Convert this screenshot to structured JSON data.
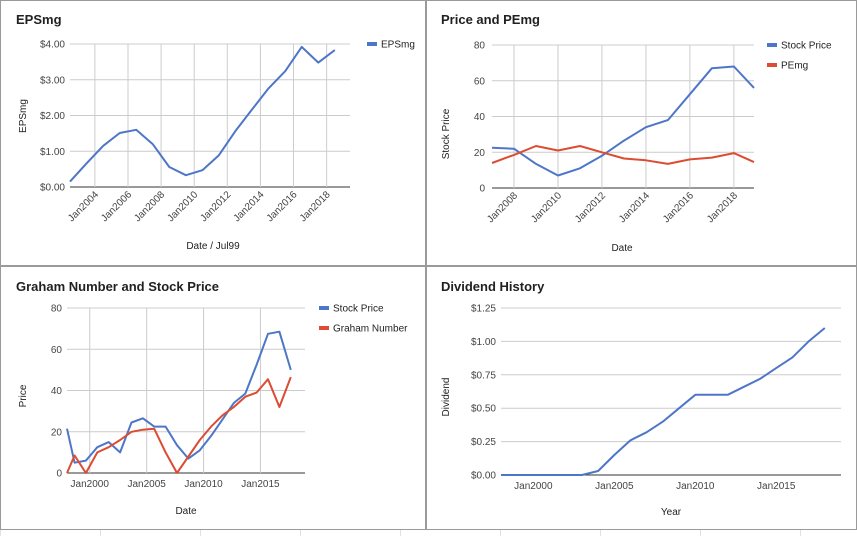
{
  "chart_data": [
    {
      "id": "c1",
      "type": "line",
      "title": "EPSmg",
      "xlabel": "Date / Jul99",
      "ylabel": "EPSmg",
      "x_type": "date",
      "xlim": [
        "2002-07-01",
        "2019-06-01"
      ],
      "ylim": [
        0,
        4
      ],
      "yticks": [
        0,
        1,
        2,
        3,
        4
      ],
      "ytick_labels": [
        "$0.00",
        "$1.00",
        "$2.00",
        "$3.00",
        "$4.00"
      ],
      "xticks": [
        "2004-01-01",
        "2006-01-01",
        "2008-01-01",
        "2010-01-01",
        "2012-01-01",
        "2014-01-01",
        "2016-01-01",
        "2018-01-01"
      ],
      "xtick_labels": [
        "Jan2004",
        "Jan2006",
        "Jan2008",
        "Jan2010",
        "Jan2012",
        "Jan2014",
        "Jan2016",
        "Jan2018"
      ],
      "xtick_rotate": true,
      "x_gridlines": true,
      "legend": "right",
      "series": [
        {
          "name": "EPSmg",
          "color": "#4e76c8",
          "points": [
            [
              "2002-07-01",
              0.15
            ],
            [
              "2003-07-01",
              0.66
            ],
            [
              "2004-07-01",
              1.15
            ],
            [
              "2005-07-01",
              1.51
            ],
            [
              "2006-07-01",
              1.6
            ],
            [
              "2007-07-01",
              1.2
            ],
            [
              "2008-07-01",
              0.56
            ],
            [
              "2009-07-01",
              0.33
            ],
            [
              "2010-07-01",
              0.47
            ],
            [
              "2011-07-01",
              0.89
            ],
            [
              "2012-07-01",
              1.57
            ],
            [
              "2013-07-01",
              2.17
            ],
            [
              "2014-07-01",
              2.76
            ],
            [
              "2015-07-01",
              3.24
            ],
            [
              "2016-07-01",
              3.92
            ],
            [
              "2017-07-01",
              3.48
            ],
            [
              "2018-07-01",
              3.83
            ]
          ]
        }
      ]
    },
    {
      "id": "c2",
      "type": "line",
      "title": "Price and PEmg",
      "xlabel": "Date",
      "ylabel": "Stock Price",
      "x_type": "date",
      "xlim": [
        "2007-01-01",
        "2018-12-01"
      ],
      "ylim": [
        0,
        80
      ],
      "yticks": [
        0,
        20,
        40,
        60,
        80
      ],
      "ytick_labels": [
        "0",
        "20",
        "40",
        "60",
        "80"
      ],
      "xticks": [
        "2008-01-01",
        "2010-01-01",
        "2012-01-01",
        "2014-01-01",
        "2016-01-01",
        "2018-01-01"
      ],
      "xtick_labels": [
        "Jan2008",
        "Jan2010",
        "Jan2012",
        "Jan2014",
        "Jan2016",
        "Jan2018"
      ],
      "xtick_rotate": true,
      "x_gridlines": true,
      "legend": "right",
      "series": [
        {
          "name": "Stock Price",
          "color": "#4e76c8",
          "points": [
            [
              "2007-01-01",
              22.5
            ],
            [
              "2008-01-01",
              22
            ],
            [
              "2009-01-01",
              13.5
            ],
            [
              "2010-01-01",
              7
            ],
            [
              "2011-01-01",
              11
            ],
            [
              "2012-01-01",
              18
            ],
            [
              "2013-01-01",
              26.5
            ],
            [
              "2014-01-01",
              34
            ],
            [
              "2015-01-01",
              38
            ],
            [
              "2016-01-01",
              52.5
            ],
            [
              "2017-01-01",
              67
            ],
            [
              "2018-01-01",
              68
            ],
            [
              "2018-12-01",
              56
            ]
          ]
        },
        {
          "name": "PEmg",
          "color": "#dc4c32",
          "points": [
            [
              "2007-01-01",
              14
            ],
            [
              "2008-01-01",
              18.5
            ],
            [
              "2009-01-01",
              23.5
            ],
            [
              "2010-01-01",
              21
            ],
            [
              "2011-01-01",
              23.5
            ],
            [
              "2012-01-01",
              20
            ],
            [
              "2013-01-01",
              16.5
            ],
            [
              "2014-01-01",
              15.5
            ],
            [
              "2015-01-01",
              13.5
            ],
            [
              "2016-01-01",
              16
            ],
            [
              "2017-01-01",
              17
            ],
            [
              "2018-01-01",
              19.5
            ],
            [
              "2018-12-01",
              14.5
            ]
          ]
        }
      ]
    },
    {
      "id": "c3",
      "type": "line",
      "title": "Graham Number and Stock Price",
      "xlabel": "Date",
      "ylabel": "Price",
      "x_type": "date",
      "xlim": [
        "1998-01-01",
        "2018-12-01"
      ],
      "ylim": [
        0,
        80
      ],
      "yticks": [
        0,
        20,
        40,
        60,
        80
      ],
      "ytick_labels": [
        "0",
        "20",
        "40",
        "60",
        "80"
      ],
      "xticks": [
        "2000-01-01",
        "2005-01-01",
        "2010-01-01",
        "2015-01-01"
      ],
      "xtick_labels": [
        "Jan2000",
        "Jan2005",
        "Jan2010",
        "Jan2015"
      ],
      "xtick_rotate": false,
      "x_gridlines": true,
      "legend": "right",
      "series": [
        {
          "name": "Stock Price",
          "color": "#4e76c8",
          "points": [
            [
              "1998-01-01",
              21.5
            ],
            [
              "1998-09-01",
              5
            ],
            [
              "1999-09-01",
              6
            ],
            [
              "2000-09-01",
              12.5
            ],
            [
              "2001-09-01",
              15
            ],
            [
              "2002-09-01",
              10
            ],
            [
              "2003-09-01",
              24.5
            ],
            [
              "2004-09-01",
              26.5
            ],
            [
              "2005-09-01",
              22.5
            ],
            [
              "2006-09-01",
              22.5
            ],
            [
              "2007-09-01",
              13.5
            ],
            [
              "2008-09-01",
              7
            ],
            [
              "2009-09-01",
              11
            ],
            [
              "2010-09-01",
              18
            ],
            [
              "2011-09-01",
              26
            ],
            [
              "2012-09-01",
              34
            ],
            [
              "2013-09-01",
              38.5
            ],
            [
              "2014-09-01",
              52.5
            ],
            [
              "2015-09-01",
              67.5
            ],
            [
              "2016-09-01",
              68.5
            ],
            [
              "2017-09-01",
              50
            ]
          ]
        },
        {
          "name": "Graham Number",
          "color": "#dc4c32",
          "points": [
            [
              "1998-01-01",
              0
            ],
            [
              "1998-09-01",
              8.5
            ],
            [
              "1999-09-01",
              0
            ],
            [
              "2000-09-01",
              10
            ],
            [
              "2001-09-01",
              12.5
            ],
            [
              "2002-09-01",
              16
            ],
            [
              "2003-09-01",
              20
            ],
            [
              "2004-09-01",
              21
            ],
            [
              "2005-09-01",
              21.5
            ],
            [
              "2006-09-01",
              10
            ],
            [
              "2007-09-01",
              0
            ],
            [
              "2008-09-01",
              8
            ],
            [
              "2009-09-01",
              16
            ],
            [
              "2010-09-01",
              22.5
            ],
            [
              "2011-09-01",
              28
            ],
            [
              "2012-09-01",
              32
            ],
            [
              "2013-09-01",
              37
            ],
            [
              "2014-09-01",
              39
            ],
            [
              "2015-09-01",
              45.5
            ],
            [
              "2016-09-01",
              32
            ],
            [
              "2017-09-01",
              46.5
            ]
          ]
        }
      ]
    },
    {
      "id": "c4",
      "type": "line",
      "title": "Dividend History",
      "xlabel": "Year",
      "ylabel": "Dividend",
      "x_type": "date",
      "xlim": [
        "1998-01-01",
        "2019-01-01"
      ],
      "ylim": [
        0,
        1.25
      ],
      "yticks": [
        0,
        0.25,
        0.5,
        0.75,
        1.0,
        1.25
      ],
      "ytick_labels": [
        "$0.00",
        "$0.25",
        "$0.50",
        "$0.75",
        "$1.00",
        "$1.25"
      ],
      "xticks": [
        "2000-01-01",
        "2005-01-01",
        "2010-01-01",
        "2015-01-01"
      ],
      "xtick_labels": [
        "Jan2000",
        "Jan2005",
        "Jan2010",
        "Jan2015"
      ],
      "xtick_rotate": false,
      "x_gridlines": false,
      "legend": "none",
      "series": [
        {
          "name": "",
          "color": "#4e76c8",
          "points": [
            [
              "1998-01-01",
              0
            ],
            [
              "1999-01-01",
              0
            ],
            [
              "2000-01-01",
              0
            ],
            [
              "2001-01-01",
              0
            ],
            [
              "2002-01-01",
              0
            ],
            [
              "2003-01-01",
              0
            ],
            [
              "2004-01-01",
              0.03
            ],
            [
              "2005-01-01",
              0.15
            ],
            [
              "2006-01-01",
              0.26
            ],
            [
              "2007-01-01",
              0.32
            ],
            [
              "2008-01-01",
              0.4
            ],
            [
              "2009-01-01",
              0.5
            ],
            [
              "2010-01-01",
              0.6
            ],
            [
              "2011-01-01",
              0.6
            ],
            [
              "2012-01-01",
              0.6
            ],
            [
              "2013-01-01",
              0.66
            ],
            [
              "2014-01-01",
              0.72
            ],
            [
              "2015-01-01",
              0.8
            ],
            [
              "2016-01-01",
              0.88
            ],
            [
              "2017-01-01",
              1.0
            ],
            [
              "2018-01-01",
              1.1
            ]
          ]
        }
      ]
    }
  ]
}
